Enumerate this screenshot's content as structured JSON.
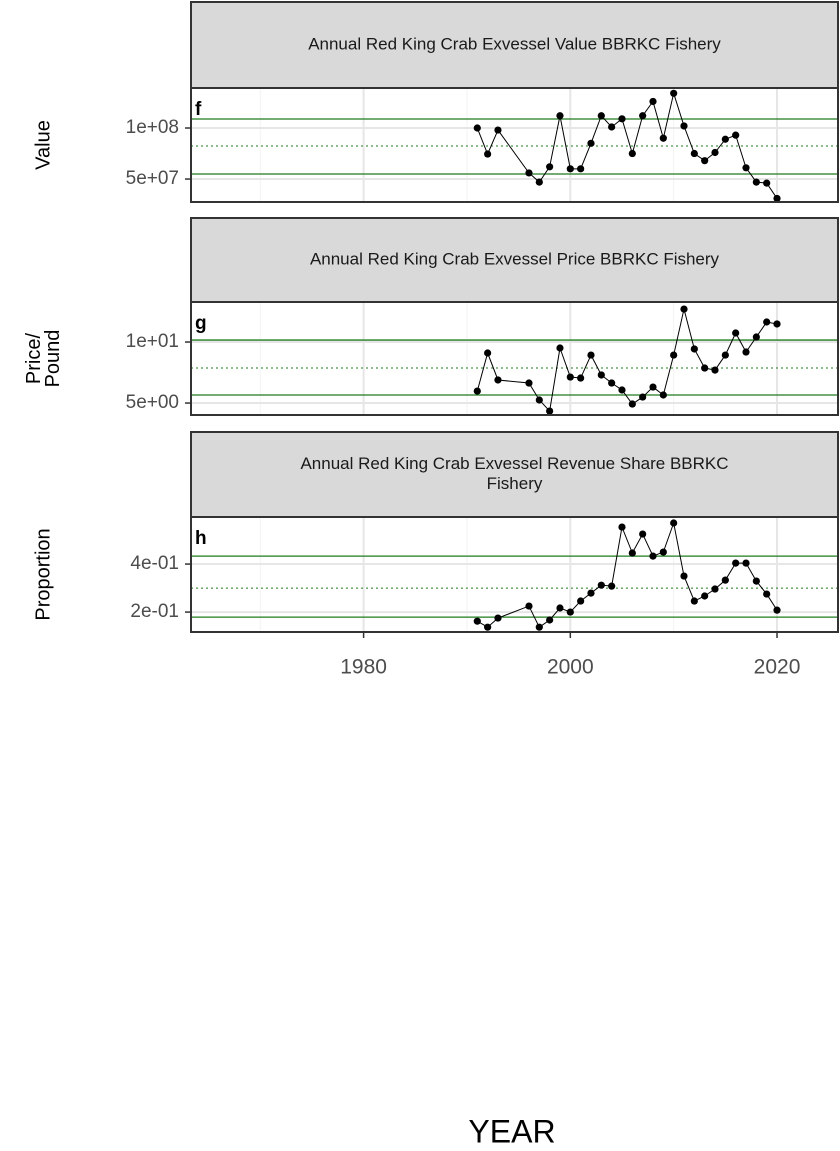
{
  "chart_data": [
    {
      "type": "line",
      "title": [
        "Annual Red King Crab Exvessel Value BBRKC Fishery"
      ],
      "tag": "f",
      "ylabel": [
        "Value"
      ],
      "x": [
        1991,
        1992,
        1993,
        1996,
        1997,
        1998,
        1999,
        2000,
        2001,
        2002,
        2003,
        2004,
        2005,
        2006,
        2007,
        2008,
        2009,
        2010,
        2011,
        2012,
        2013,
        2014,
        2015,
        2016,
        2017,
        2018,
        2019,
        2020
      ],
      "values": [
        100000000,
        74500000,
        98000000,
        56000000,
        47000000,
        62000000,
        112000000,
        60000000,
        60000000,
        85000000,
        112000000,
        101000000,
        109000000,
        75000000,
        112000000,
        126000000,
        90000000,
        134000000,
        102000000,
        75000000,
        68000000,
        76000000,
        89000000,
        93000000,
        61000000,
        47000000,
        46000000,
        31000000
      ],
      "color": "#000000",
      "xlim": [
        1963.3,
        2025.9
      ],
      "xticks": [
        1980,
        2000,
        2020
      ],
      "xminor": [
        1970,
        1990,
        2010
      ],
      "ylim": [
        27500000,
        139200000
      ],
      "yticks": [
        {
          "value": 50000000,
          "label": "5e+07"
        },
        {
          "value": 100000000,
          "label": "1e+08"
        }
      ],
      "hlines": [
        {
          "value": 108800000,
          "dashed": false
        },
        {
          "value": 82400000,
          "dashed": true
        },
        {
          "value": 54900000,
          "dashed": false
        }
      ],
      "hline_color": "#1e7b1e",
      "grid": true
    },
    {
      "type": "line",
      "title": [
        "Annual Red King Crab Exvessel Price BBRKC Fishery"
      ],
      "tag": "g",
      "ylabel": [
        "Price/",
        "Pound"
      ],
      "x": [
        1991,
        1992,
        1993,
        1996,
        1997,
        1998,
        1999,
        2000,
        2001,
        2002,
        2003,
        2004,
        2005,
        2006,
        2007,
        2008,
        2009,
        2010,
        2011,
        2012,
        2013,
        2014,
        2015,
        2016,
        2017,
        2018,
        2019,
        2020
      ],
      "values": [
        5.98,
        9.1,
        6.89,
        6.64,
        5.25,
        4.34,
        9.51,
        7.13,
        7.05,
        8.93,
        7.3,
        6.64,
        6.07,
        4.92,
        5.49,
        6.31,
        5.66,
        8.93,
        12.7,
        9.43,
        7.87,
        7.7,
        8.93,
        10.74,
        9.18,
        10.41,
        11.64,
        11.48
      ],
      "color": "#000000",
      "xlim": [
        1963.3,
        2025.9
      ],
      "xticks": [
        1980,
        2000,
        2020
      ],
      "xminor": [
        1970,
        1990,
        2010
      ],
      "ylim": [
        4.02,
        13.28
      ],
      "yticks": [
        {
          "value": 5,
          "label": "5e+00"
        },
        {
          "value": 10,
          "label": "1e+01"
        }
      ],
      "hlines": [
        {
          "value": 10.16,
          "dashed": false
        },
        {
          "value": 7.87,
          "dashed": true
        },
        {
          "value": 5.66,
          "dashed": false
        }
      ],
      "hline_color": "#1e7b1e",
      "grid": true
    },
    {
      "type": "line",
      "title": [
        "Annual Red King Crab Exvessel Revenue Share BBRKC",
        "Fishery"
      ],
      "tag": "h",
      "ylabel": [
        "Proportion"
      ],
      "xlabel": "YEAR",
      "x": [
        1991,
        1992,
        1993,
        1996,
        1997,
        1998,
        1999,
        2000,
        2001,
        2002,
        2003,
        2004,
        2005,
        2006,
        2007,
        2008,
        2009,
        2010,
        2011,
        2012,
        2013,
        2014,
        2015,
        2016,
        2017,
        2018,
        2019,
        2020
      ],
      "values": [
        0.162,
        0.137,
        0.175,
        0.225,
        0.137,
        0.167,
        0.217,
        0.2,
        0.246,
        0.279,
        0.312,
        0.308,
        0.554,
        0.446,
        0.525,
        0.433,
        0.45,
        0.571,
        0.35,
        0.246,
        0.267,
        0.296,
        0.333,
        0.404,
        0.404,
        0.329,
        0.275,
        0.208
      ],
      "color": "#000000",
      "xlim": [
        1963.3,
        2025.9
      ],
      "xticks": [
        1980,
        2000,
        2020
      ],
      "xminor": [
        1970,
        1990,
        2010
      ],
      "ylim": [
        0.117,
        0.596
      ],
      "yticks": [
        {
          "value": 0.2,
          "label": "2e-01"
        },
        {
          "value": 0.4,
          "label": "4e-01"
        }
      ],
      "hlines": [
        {
          "value": 0.433,
          "dashed": false
        },
        {
          "value": 0.3,
          "dashed": true
        },
        {
          "value": 0.179,
          "dashed": false
        }
      ],
      "hline_color": "#1e7b1e",
      "grid": true
    }
  ]
}
